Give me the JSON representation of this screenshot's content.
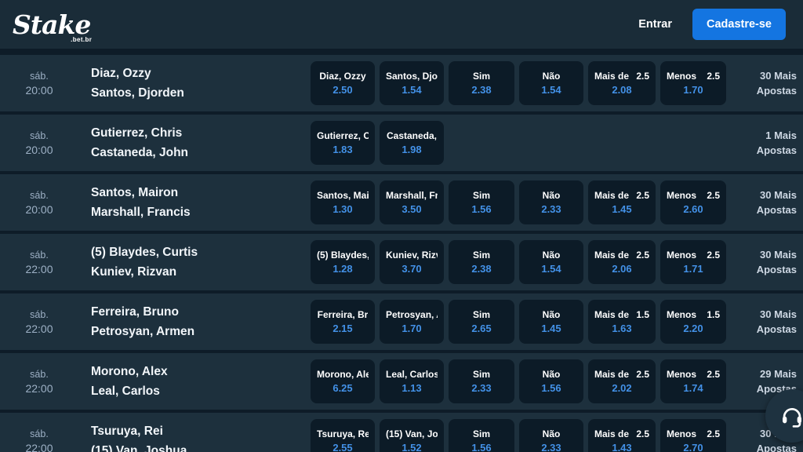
{
  "brand": {
    "logo_text": "Stake",
    "logo_suffix": ".bet.br"
  },
  "header": {
    "entrar_label": "Entrar",
    "cadastre_label": "Cadastre-se"
  },
  "colors": {
    "header_bg": "#1a2c38",
    "page_bg": "#0e1c28",
    "row_bg": "#1d303d",
    "odds_box_bg": "#0c1b27",
    "odds_value_blue": "#4391e7",
    "signup_button_blue": "#1475e1"
  },
  "floating_button": {
    "icon": "headset-support-icon"
  },
  "rows": [
    {
      "day": "sáb.",
      "time": "20:00",
      "fighter1": "Diaz, Ozzy",
      "fighter2": "Santos, Djorden",
      "odds": [
        {
          "label": "Diaz, Ozzy",
          "value": "2.50"
        },
        {
          "label": "Santos, Djo",
          "value": "1.54"
        },
        {
          "label": "Sim",
          "value": "2.38"
        },
        {
          "label": "Não",
          "value": "1.54"
        },
        {
          "label": "Mais de",
          "handicap": "2.5",
          "value": "2.08"
        },
        {
          "label": "Menos",
          "handicap": "2.5",
          "value": "1.70"
        }
      ],
      "more_line1": "30 Mais",
      "more_line2": "Apostas"
    },
    {
      "day": "sáb.",
      "time": "20:00",
      "fighter1": "Gutierrez, Chris",
      "fighter2": "Castaneda, John",
      "odds": [
        {
          "label": "Gutierrez, C",
          "value": "1.83"
        },
        {
          "label": "Castaneda,",
          "value": "1.98"
        },
        null,
        null,
        null,
        null
      ],
      "more_line1": "1 Mais",
      "more_line2": "Apostas"
    },
    {
      "day": "sáb.",
      "time": "20:00",
      "fighter1": "Santos, Mairon",
      "fighter2": "Marshall, Francis",
      "odds": [
        {
          "label": "Santos, Mai",
          "value": "1.30"
        },
        {
          "label": "Marshall, Fr",
          "value": "3.50"
        },
        {
          "label": "Sim",
          "value": "1.56"
        },
        {
          "label": "Não",
          "value": "2.33"
        },
        {
          "label": "Mais de",
          "handicap": "2.5",
          "value": "1.45"
        },
        {
          "label": "Menos",
          "handicap": "2.5",
          "value": "2.60"
        }
      ],
      "more_line1": "30 Mais",
      "more_line2": "Apostas"
    },
    {
      "day": "sáb.",
      "time": "22:00",
      "fighter1": "(5) Blaydes, Curtis",
      "fighter2": "Kuniev, Rizvan",
      "odds": [
        {
          "label": "(5) Blaydes,",
          "value": "1.28"
        },
        {
          "label": "Kuniev, Rizv",
          "value": "3.70"
        },
        {
          "label": "Sim",
          "value": "2.38"
        },
        {
          "label": "Não",
          "value": "1.54"
        },
        {
          "label": "Mais de",
          "handicap": "2.5",
          "value": "2.06"
        },
        {
          "label": "Menos",
          "handicap": "2.5",
          "value": "1.71"
        }
      ],
      "more_line1": "30 Mais",
      "more_line2": "Apostas"
    },
    {
      "day": "sáb.",
      "time": "22:00",
      "fighter1": "Ferreira, Bruno",
      "fighter2": "Petrosyan, Armen",
      "odds": [
        {
          "label": "Ferreira, Br",
          "value": "2.15"
        },
        {
          "label": "Petrosyan, A",
          "value": "1.70"
        },
        {
          "label": "Sim",
          "value": "2.65"
        },
        {
          "label": "Não",
          "value": "1.45"
        },
        {
          "label": "Mais de",
          "handicap": "1.5",
          "value": "1.63"
        },
        {
          "label": "Menos",
          "handicap": "1.5",
          "value": "2.20"
        }
      ],
      "more_line1": "30 Mais",
      "more_line2": "Apostas"
    },
    {
      "day": "sáb.",
      "time": "22:00",
      "fighter1": "Morono, Alex",
      "fighter2": "Leal, Carlos",
      "odds": [
        {
          "label": "Morono, Ale",
          "value": "6.25"
        },
        {
          "label": "Leal, Carlos",
          "value": "1.13"
        },
        {
          "label": "Sim",
          "value": "2.33"
        },
        {
          "label": "Não",
          "value": "1.56"
        },
        {
          "label": "Mais de",
          "handicap": "2.5",
          "value": "2.02"
        },
        {
          "label": "Menos",
          "handicap": "2.5",
          "value": "1.74"
        }
      ],
      "more_line1": "29 Mais",
      "more_line2": "Apostas"
    },
    {
      "day": "sáb.",
      "time": "22:00",
      "fighter1": "Tsuruya, Rei",
      "fighter2": "(15) Van, Joshua",
      "odds": [
        {
          "label": "Tsuruya, Re",
          "value": "2.55"
        },
        {
          "label": "(15) Van, Jo",
          "value": "1.52"
        },
        {
          "label": "Sim",
          "value": "1.56"
        },
        {
          "label": "Não",
          "value": "2.33"
        },
        {
          "label": "Mais de",
          "handicap": "2.5",
          "value": "1.43"
        },
        {
          "label": "Menos",
          "handicap": "2.5",
          "value": "2.70"
        }
      ],
      "more_line1": "30 Mais",
      "more_line2": "Apostas"
    }
  ]
}
